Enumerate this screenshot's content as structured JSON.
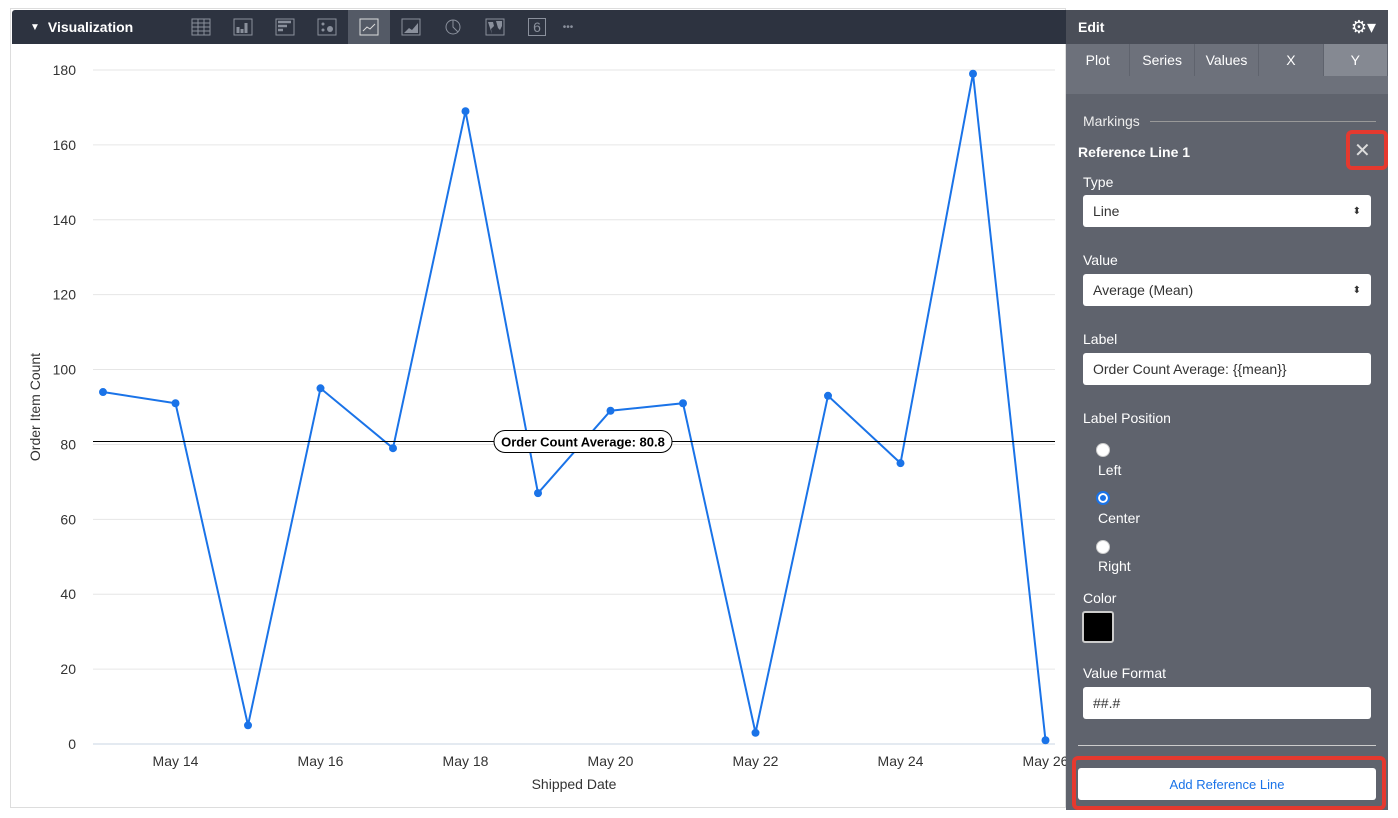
{
  "toolbar": {
    "title": "Visualization",
    "icons": [
      "table-icon",
      "column-chart-icon",
      "bar-chart-icon",
      "scatter-icon",
      "line-chart-icon",
      "area-chart-icon",
      "pie-chart-icon",
      "map-icon",
      "single-value-icon",
      "more-icon"
    ],
    "single_value_glyph": "6",
    "more_glyph": "•••"
  },
  "panel": {
    "title": "Edit",
    "tabs": [
      "Plot",
      "Series",
      "Values",
      "X",
      "Y"
    ],
    "active_tab": "Y",
    "section": "Markings",
    "ref_title": "Reference Line 1",
    "type_label": "Type",
    "type_value": "Line",
    "value_label": "Value",
    "value_value": "Average (Mean)",
    "label_label": "Label",
    "label_value": "Order Count Average: {{mean}}",
    "position_label": "Label Position",
    "positions": [
      "Left",
      "Center",
      "Right"
    ],
    "position_selected": "Center",
    "color_label": "Color",
    "color_value": "#000000",
    "format_label": "Value Format",
    "format_value": "##.#",
    "add_button": "Add Reference Line"
  },
  "chart_data": {
    "type": "line",
    "xlabel": "Shipped Date",
    "ylabel": "Order Item Count",
    "ylim": [
      0,
      180
    ],
    "yticks": [
      "0",
      "20",
      "40",
      "60",
      "80",
      "100",
      "120",
      "140",
      "160",
      "180"
    ],
    "x": [
      "May 13",
      "May 14",
      "May 15",
      "May 16",
      "May 17",
      "May 18",
      "May 19",
      "May 20",
      "May 21",
      "May 22",
      "May 23",
      "May 24",
      "May 25",
      "May 26"
    ],
    "xtick_labels": [
      "May 14",
      "May 16",
      "May 18",
      "May 20",
      "May 22",
      "May 24",
      "May 26"
    ],
    "values": [
      94,
      91,
      5,
      95,
      79,
      169,
      67,
      89,
      91,
      3,
      93,
      75,
      179,
      1
    ],
    "reference_line": {
      "value": 80.8,
      "label": "Order Count Average: 80.8",
      "color": "#000000"
    },
    "series_color": "#1a73e8",
    "grid": true
  }
}
